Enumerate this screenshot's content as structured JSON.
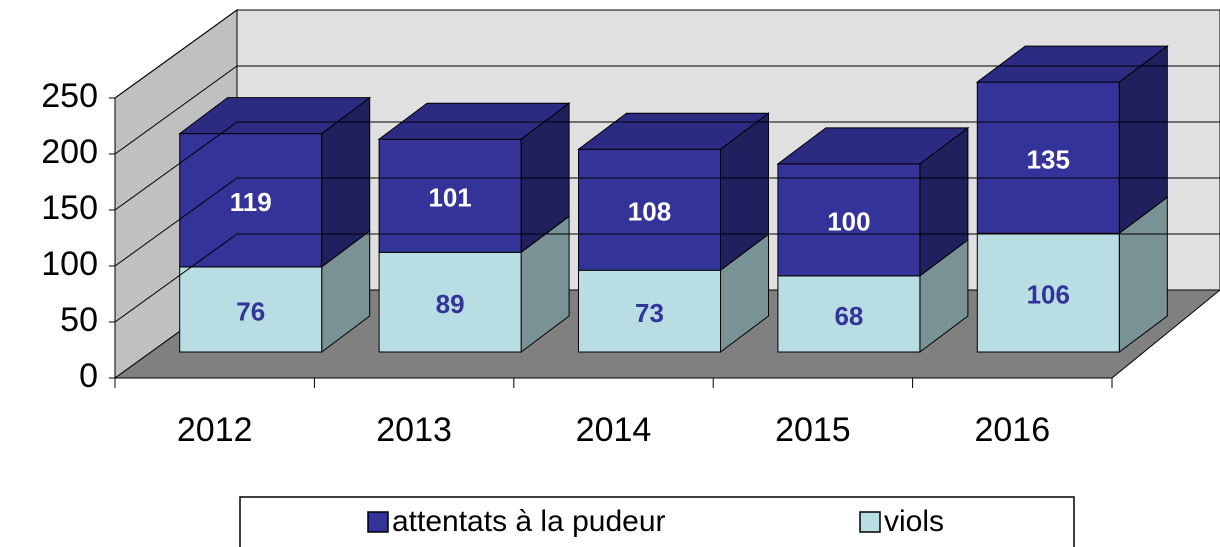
{
  "chart_data": {
    "type": "bar3d_stacked",
    "categories": [
      "2012",
      "2013",
      "2014",
      "2015",
      "2016"
    ],
    "series": [
      {
        "name": "viols",
        "color": "#b8dde3",
        "values": [
          76,
          89,
          73,
          68,
          106
        ]
      },
      {
        "name": "attentats à la pudeur",
        "color": "#333399",
        "values": [
          119,
          101,
          108,
          100,
          135
        ]
      }
    ],
    "ylim": [
      0,
      250
    ],
    "yticks": [
      0,
      50,
      100,
      150,
      200,
      250
    ],
    "grid": true,
    "legend": "bottom"
  }
}
